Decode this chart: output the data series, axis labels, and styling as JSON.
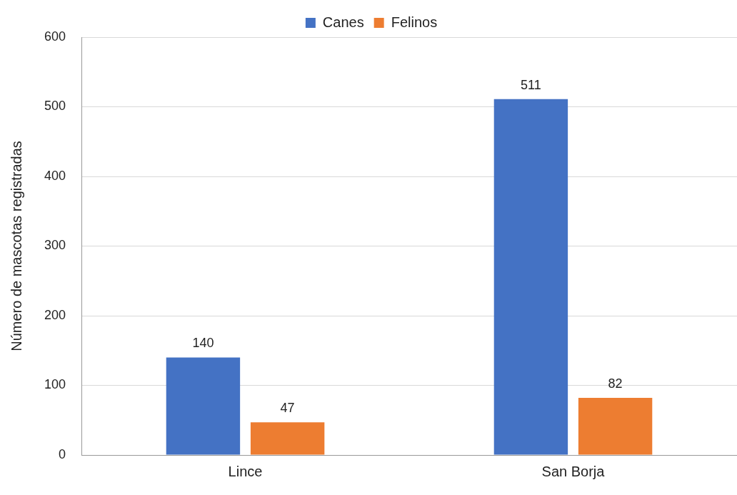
{
  "chart_data": {
    "type": "bar",
    "ylabel": "Número de mascotas registradas",
    "categories": [
      "Lince",
      "San Borja"
    ],
    "series": [
      {
        "name": "Canes",
        "color": "#4472c4",
        "values": [
          140,
          511
        ]
      },
      {
        "name": "Felinos",
        "color": "#ed7d31",
        "values": [
          47,
          82
        ]
      }
    ],
    "ylim": [
      0,
      600
    ],
    "yticks": [
      0,
      100,
      200,
      300,
      400,
      500,
      600
    ],
    "grid": "y",
    "legend": "top",
    "data_labels": true
  }
}
